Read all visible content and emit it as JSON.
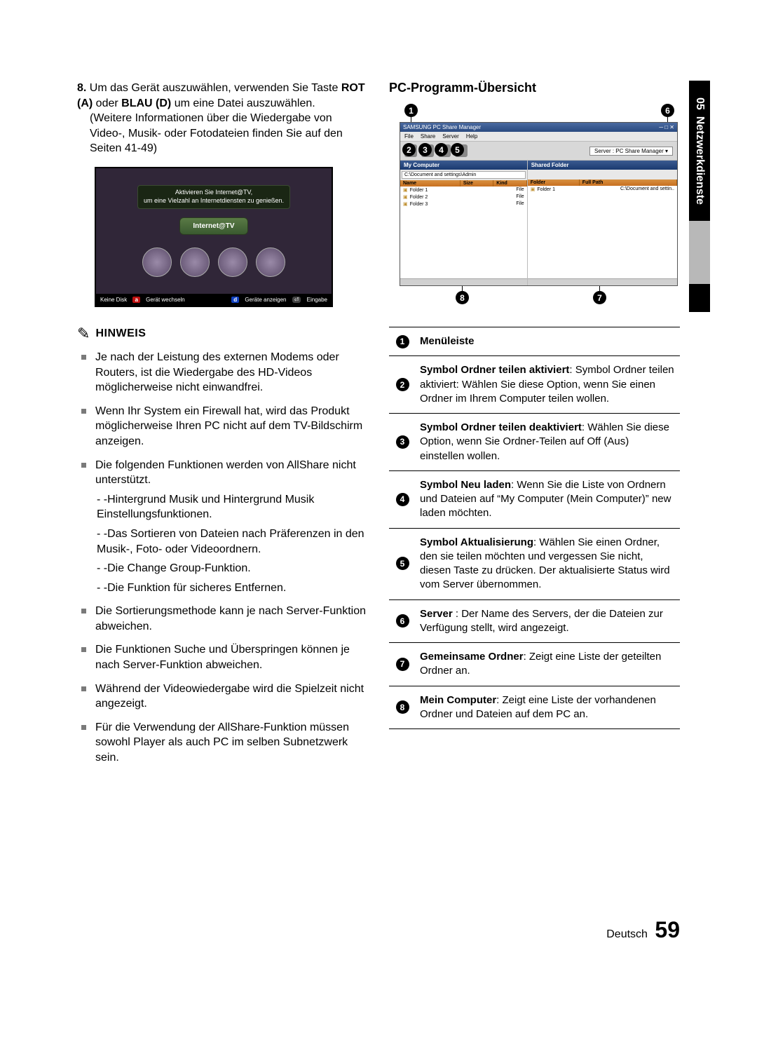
{
  "sideTab": {
    "chapter": "05",
    "title": "Netzwerkdienste"
  },
  "left": {
    "step": {
      "num": "8.",
      "body": "Um das Gerät auszuwählen, verwenden Sie Taste ",
      "rot": "ROT (A)",
      "mid": " oder ",
      "blau": "BLAU (D)",
      "tail": " um eine Datei auszuwählen.",
      "line2": "(Weitere Informationen über die Wiedergabe von Video-, Musik- oder Fotodateien finden Sie auf den Seiten 41-49)"
    },
    "tv": {
      "toast1": "Aktivieren Sie Internet@TV,",
      "toast2": "um eine Vielzahl an Internetdiensten zu genießen.",
      "btn": "Internet@TV",
      "footerLeft": "Keine Disk",
      "footerA": "Gerät wechseln",
      "footerD": "Geräte anzeigen",
      "footerEnter": "Eingabe"
    },
    "hinweis": {
      "icon": "✎",
      "label": "HINWEIS"
    },
    "bullets": [
      "Je nach der Leistung des externen Modems oder Routers, ist die Wiedergabe des HD-Videos möglicherweise nicht einwandfrei.",
      "Wenn Ihr System ein Firewall hat, wird das Produkt möglicherweise Ihren PC nicht auf dem TV-Bildschirm anzeigen.",
      "Die folgenden Funktionen werden von AllShare nicht unterstützt.",
      "Die Sortierungsmethode kann je nach Server-Funktion abweichen.",
      "Die Funktionen Suche und Überspringen können je nach Server-Funktion abweichen.",
      "Während der Videowiedergabe wird die Spielzeit nicht angezeigt.",
      "Für die Verwendung der AllShare-Funktion müssen sowohl Player als auch PC im selben Subnetzwerk sein."
    ],
    "subbullets": [
      "- -Hintergrund Musik und Hintergrund Musik Einstellungsfunktionen.",
      "- -Das Sortieren von Dateien nach Präferenzen in den Musik-, Foto- oder Videoordnern.",
      "- -Die Change Group-Funktion.",
      "- -Die Funktion für sicheres Entfernen."
    ]
  },
  "right": {
    "title": "PC-Programm-Übersicht",
    "win": {
      "title": "SAMSUNG PC Share Manager",
      "menus": [
        "File",
        "Share",
        "Server",
        "Help"
      ],
      "server": "Server : PC Share Manager  ▾",
      "leftHead": "My Computer",
      "rightHead": "Shared Folder",
      "path": "C:\\Document and settings\\Admin",
      "leftCols": [
        "Name",
        "Size",
        "Kind"
      ],
      "rightCols": [
        "Folder",
        "Full Path"
      ],
      "leftRows": [
        [
          "Folder 1",
          "",
          "File"
        ],
        [
          "Folder 2",
          "",
          "File"
        ],
        [
          "Folder 3",
          "",
          "File"
        ]
      ],
      "rightRows": [
        [
          "Folder 1",
          "C:\\Document and settin.."
        ]
      ]
    },
    "table": [
      {
        "n": "1",
        "bold": "Menüleiste",
        "text": ""
      },
      {
        "n": "2",
        "bold": "Symbol Ordner teilen aktiviert",
        "text": ": Symbol Ordner teilen aktiviert: Wählen Sie diese Option, wenn Sie einen Ordner im Ihrem Computer teilen wollen."
      },
      {
        "n": "3",
        "bold": "Symbol Ordner teilen deaktiviert",
        "text": ": Wählen Sie diese Option, wenn Sie Ordner-Teilen auf Off (Aus) einstellen wollen."
      },
      {
        "n": "4",
        "bold": "Symbol Neu laden",
        "text": ": Wenn Sie die Liste von Ordnern und Dateien auf “My Computer (Mein Computer)” new laden möchten."
      },
      {
        "n": "5",
        "bold": "Symbol Aktualisierung",
        "text": ": Wählen Sie einen Ordner, den sie teilen möchten und vergessen Sie nicht, diesen Taste zu drücken. Der aktualisierte Status wird vom Server übernommen."
      },
      {
        "n": "6",
        "bold": "Server ",
        "text": ": Der Name des Servers, der die Dateien zur Verfügung stellt, wird angezeigt."
      },
      {
        "n": "7",
        "bold": "Gemeinsame Ordner",
        "text": ": Zeigt eine Liste der geteilten Ordner an."
      },
      {
        "n": "8",
        "bold": "Mein Computer",
        "text": ": Zeigt eine Liste der vorhandenen Ordner und Dateien auf dem PC an."
      }
    ]
  },
  "footer": {
    "lang": "Deutsch",
    "page": "59"
  }
}
